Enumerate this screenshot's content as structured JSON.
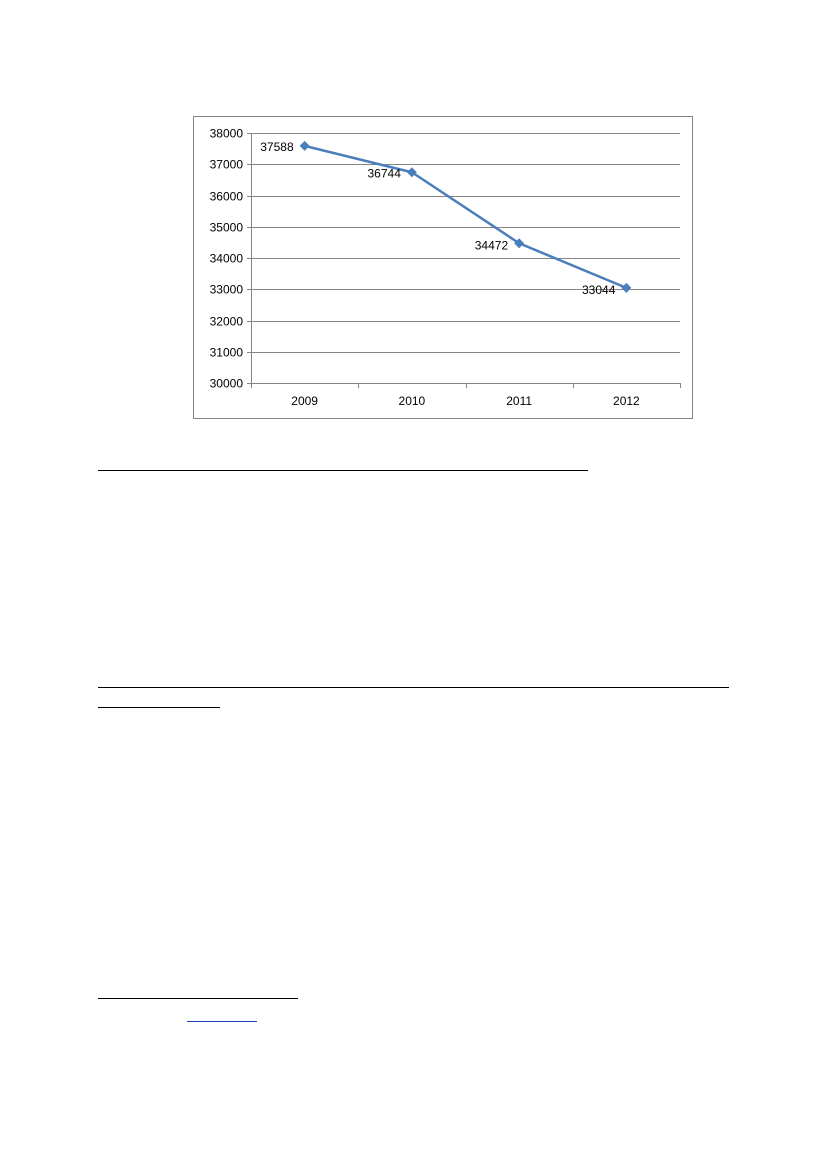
{
  "chart_data": {
    "type": "line",
    "title": "",
    "xlabel": "",
    "ylabel": "",
    "categories": [
      "2009",
      "2010",
      "2011",
      "2012"
    ],
    "series": [
      {
        "values": [
          37588,
          36744,
          34472,
          33044
        ]
      }
    ],
    "data_labels": [
      "37588",
      "36744",
      "34472",
      "33044"
    ],
    "ylim": [
      30000,
      38000
    ],
    "y_ticks": [
      "30000",
      "31000",
      "32000",
      "33000",
      "34000",
      "35000",
      "36000",
      "37000",
      "38000"
    ],
    "grid": true,
    "legend": "none",
    "marker": "diamond",
    "colors": {
      "series": "#4a7ebb",
      "grid": "#868686",
      "frame": "#868686",
      "axis": "#868686"
    }
  }
}
